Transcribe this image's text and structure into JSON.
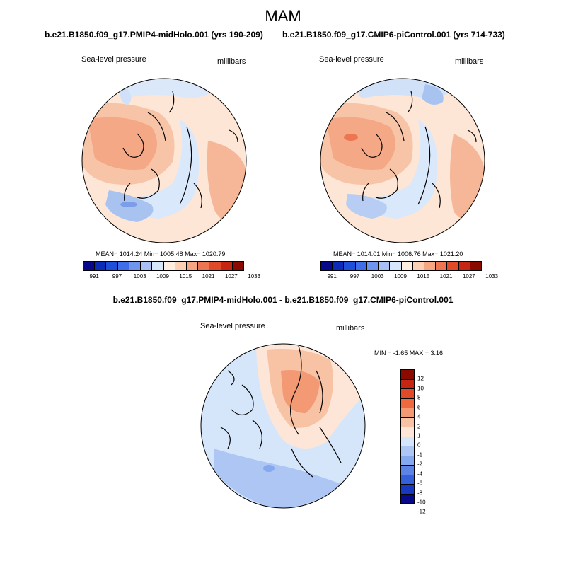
{
  "main_title": "MAM",
  "panels": [
    {
      "title": "b.e21.B1850.f09_g17.PMIP4-midHolo.001 (yrs 190-209)",
      "variable": "Sea-level pressure",
      "units": "millibars",
      "stats": "MEAN= 1014.24  Min= 1005.48  Max= 1020.79"
    },
    {
      "title": "b.e21.B1850.f09_g17.CMIP6-piControl.001 (yrs 714-733)",
      "variable": "Sea-level pressure",
      "units": "millibars",
      "stats": "MEAN= 1014.01  Min= 1006.76  Max= 1021.20"
    }
  ],
  "diff_panel": {
    "title": "b.e21.B1850.f09_g17.PMIP4-midHolo.001 - b.e21.B1850.f09_g17.CMIP6-piControl.001",
    "variable": "Sea-level pressure",
    "units": "millibars",
    "stats": "MIN =  -1.65 MAX =   3.16"
  },
  "colorbar_abs": {
    "labels": [
      "991",
      "997",
      "1003",
      "1009",
      "1015",
      "1021",
      "1027",
      "1033"
    ],
    "colors": [
      "#08088a",
      "#0c2bb8",
      "#1e4fdb",
      "#3e6fe8",
      "#6f95ee",
      "#a8c0f3",
      "#d7e7fb",
      "#fdeee0",
      "#fbd0b5",
      "#f6a682",
      "#ee7551",
      "#e04a28",
      "#c52512",
      "#8b0a00"
    ]
  },
  "colorbar_diff": {
    "labels": [
      "12",
      "10",
      "8",
      "6",
      "4",
      "2",
      "1",
      "0",
      "-1",
      "-2",
      "-4",
      "-6",
      "-8",
      "-10",
      "-12"
    ],
    "colors": [
      "#8b0a00",
      "#c52512",
      "#e04a28",
      "#ee6a3e",
      "#f39a74",
      "#f8c2a4",
      "#fde6d8",
      "#d6e6fa",
      "#adc6f3",
      "#86a8ee",
      "#5d83e6",
      "#3560dc",
      "#1838c0",
      "#08088a"
    ]
  }
}
